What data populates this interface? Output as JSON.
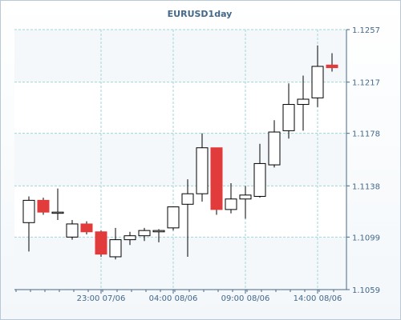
{
  "chart_data": {
    "type": "candlestick",
    "title": "EURUSD1day",
    "colors": {
      "bull_fill": "#ffffff",
      "bear_fill": "#e23b3b",
      "outline": "#000000",
      "grid": "#9fd6d8",
      "axis": "#43688a",
      "band": "#f4f8fb"
    },
    "y_axis": {
      "position": "right",
      "ticks": [
        "1.1257",
        "1.1217",
        "1.1178",
        "1.1138",
        "1.1099",
        "1.1059"
      ],
      "ylim": [
        1.1059,
        1.1257
      ]
    },
    "x_axis": {
      "ticks": [
        {
          "label": "23:00 07/06",
          "at": 5
        },
        {
          "label": "04:00 08/06",
          "at": 10
        },
        {
          "label": "09:00 08/06",
          "at": 15
        },
        {
          "label": "14:00 08/06",
          "at": 20
        }
      ]
    },
    "grid": true,
    "candles": [
      {
        "o": 1.111,
        "h": 1.113,
        "l": 1.1088,
        "c": 1.1127
      },
      {
        "o": 1.1127,
        "h": 1.1129,
        "l": 1.1116,
        "c": 1.1118
      },
      {
        "o": 1.1118,
        "h": 1.1136,
        "l": 1.1112,
        "c": 1.1118
      },
      {
        "o": 1.1099,
        "h": 1.1112,
        "l": 1.1097,
        "c": 1.1109
      },
      {
        "o": 1.1109,
        "h": 1.1111,
        "l": 1.1101,
        "c": 1.1103
      },
      {
        "o": 1.1103,
        "h": 1.1104,
        "l": 1.1084,
        "c": 1.1086
      },
      {
        "o": 1.1084,
        "h": 1.1106,
        "l": 1.1082,
        "c": 1.1097
      },
      {
        "o": 1.1097,
        "h": 1.1103,
        "l": 1.1093,
        "c": 1.11
      },
      {
        "o": 1.11,
        "h": 1.1106,
        "l": 1.1096,
        "c": 1.1104
      },
      {
        "o": 1.1103,
        "h": 1.1105,
        "l": 1.1095,
        "c": 1.1104
      },
      {
        "o": 1.1106,
        "h": 1.1122,
        "l": 1.1104,
        "c": 1.1122
      },
      {
        "o": 1.1124,
        "h": 1.1143,
        "l": 1.1084,
        "c": 1.1132
      },
      {
        "o": 1.1132,
        "h": 1.1178,
        "l": 1.1126,
        "c": 1.1167
      },
      {
        "o": 1.1167,
        "h": 1.1167,
        "l": 1.1116,
        "c": 1.112
      },
      {
        "o": 1.112,
        "h": 1.114,
        "l": 1.1117,
        "c": 1.1128
      },
      {
        "o": 1.1128,
        "h": 1.1138,
        "l": 1.1113,
        "c": 1.1131
      },
      {
        "o": 1.113,
        "h": 1.117,
        "l": 1.1129,
        "c": 1.1155
      },
      {
        "o": 1.1154,
        "h": 1.1188,
        "l": 1.1152,
        "c": 1.1179
      },
      {
        "o": 1.118,
        "h": 1.1216,
        "l": 1.1174,
        "c": 1.12
      },
      {
        "o": 1.12,
        "h": 1.1222,
        "l": 1.118,
        "c": 1.1204
      },
      {
        "o": 1.1205,
        "h": 1.1245,
        "l": 1.1198,
        "c": 1.1229
      },
      {
        "o": 1.123,
        "h": 1.1239,
        "l": 1.1225,
        "c": 1.1228
      }
    ]
  }
}
